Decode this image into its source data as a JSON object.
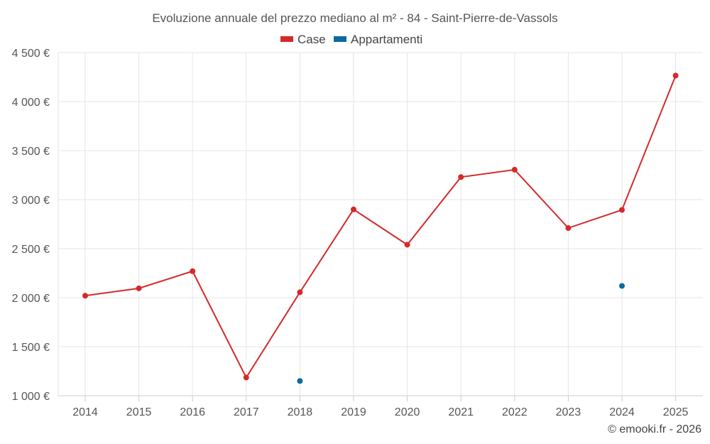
{
  "chart_data": {
    "type": "line",
    "title": "Evoluzione annuale del prezzo mediano al m² - 84 - Saint-Pierre-de-Vassols",
    "xlabel": "",
    "ylabel": "",
    "categories": [
      "2014",
      "2015",
      "2016",
      "2017",
      "2018",
      "2019",
      "2020",
      "2021",
      "2022",
      "2023",
      "2024",
      "2025"
    ],
    "ylim": [
      1000,
      4500
    ],
    "yticks": [
      1000,
      1500,
      2000,
      2500,
      3000,
      3500,
      4000,
      4500
    ],
    "ytick_labels": [
      "1 000 €",
      "1 500 €",
      "2 000 €",
      "2 500 €",
      "3 000 €",
      "3 500 €",
      "4 000 €",
      "4 500 €"
    ],
    "grid": true,
    "legend_position": "top-center",
    "series": [
      {
        "name": "Case",
        "color": "#d42a2a",
        "values": [
          2020,
          2095,
          2270,
          1185,
          2055,
          2900,
          2540,
          3230,
          3305,
          2710,
          2895,
          4265
        ]
      },
      {
        "name": "Appartamenti",
        "color": "#0a6aa1",
        "values": [
          null,
          null,
          null,
          null,
          1150,
          null,
          null,
          null,
          null,
          null,
          2120,
          null
        ]
      }
    ],
    "credit": "© emooki.fr - 2026"
  }
}
